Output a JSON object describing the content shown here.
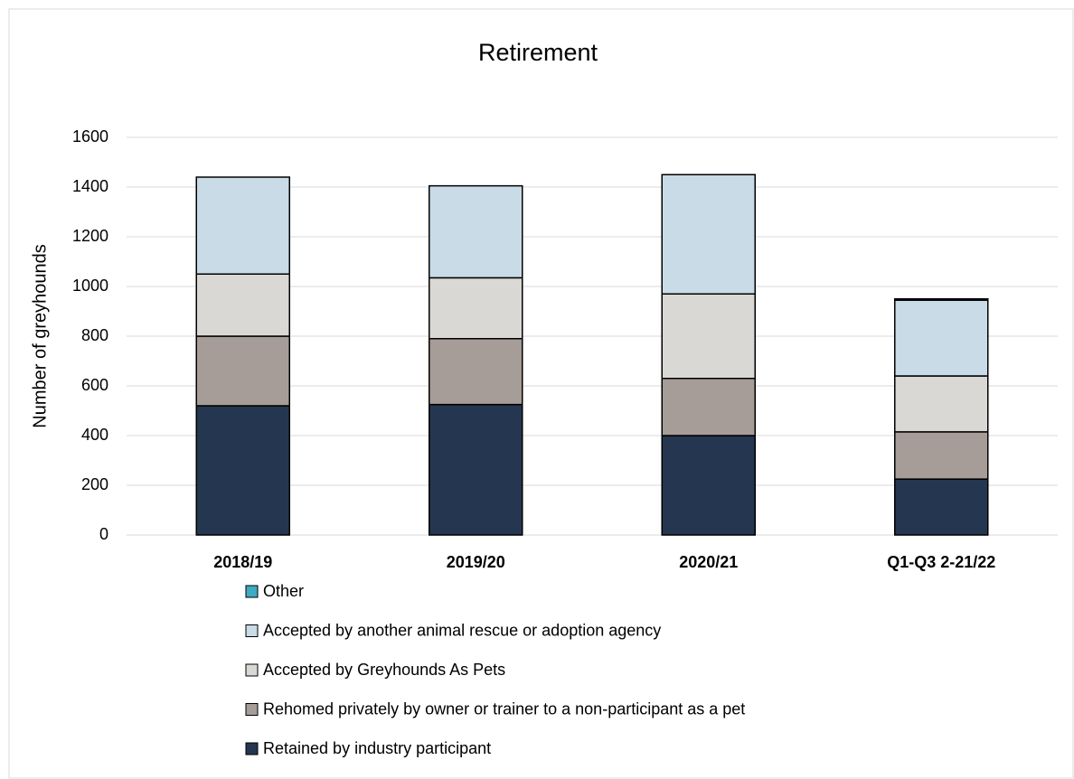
{
  "chart_data": {
    "type": "stacked_bar",
    "title": "Retirement",
    "y_label": "Number of greyhounds",
    "categories": [
      "2018/19",
      "2019/20",
      "2020/21",
      "Q1-Q3 2-21/22"
    ],
    "series": [
      {
        "name": "Retained by industry participant",
        "color": "#253650",
        "values": [
          520,
          525,
          400,
          225
        ]
      },
      {
        "name": "Rehomed privately by owner or trainer to a non-participant as a pet",
        "color": "#a69d98",
        "values": [
          280,
          265,
          230,
          190
        ]
      },
      {
        "name": "Accepted by Greyhounds As Pets",
        "color": "#d9d8d5",
        "values": [
          250,
          245,
          340,
          225
        ]
      },
      {
        "name": "Accepted by another animal rescue or adoption agency",
        "color": "#c9dbe7",
        "values": [
          390,
          370,
          480,
          305
        ]
      },
      {
        "name": "Other",
        "color": "#3fa9c1",
        "values": [
          0,
          0,
          0,
          5
        ]
      }
    ],
    "ylim": [
      0,
      1600
    ],
    "yticks": [
      0,
      200,
      400,
      600,
      800,
      1000,
      1200,
      1400,
      1600
    ],
    "grid": true,
    "legend": "bottom"
  }
}
